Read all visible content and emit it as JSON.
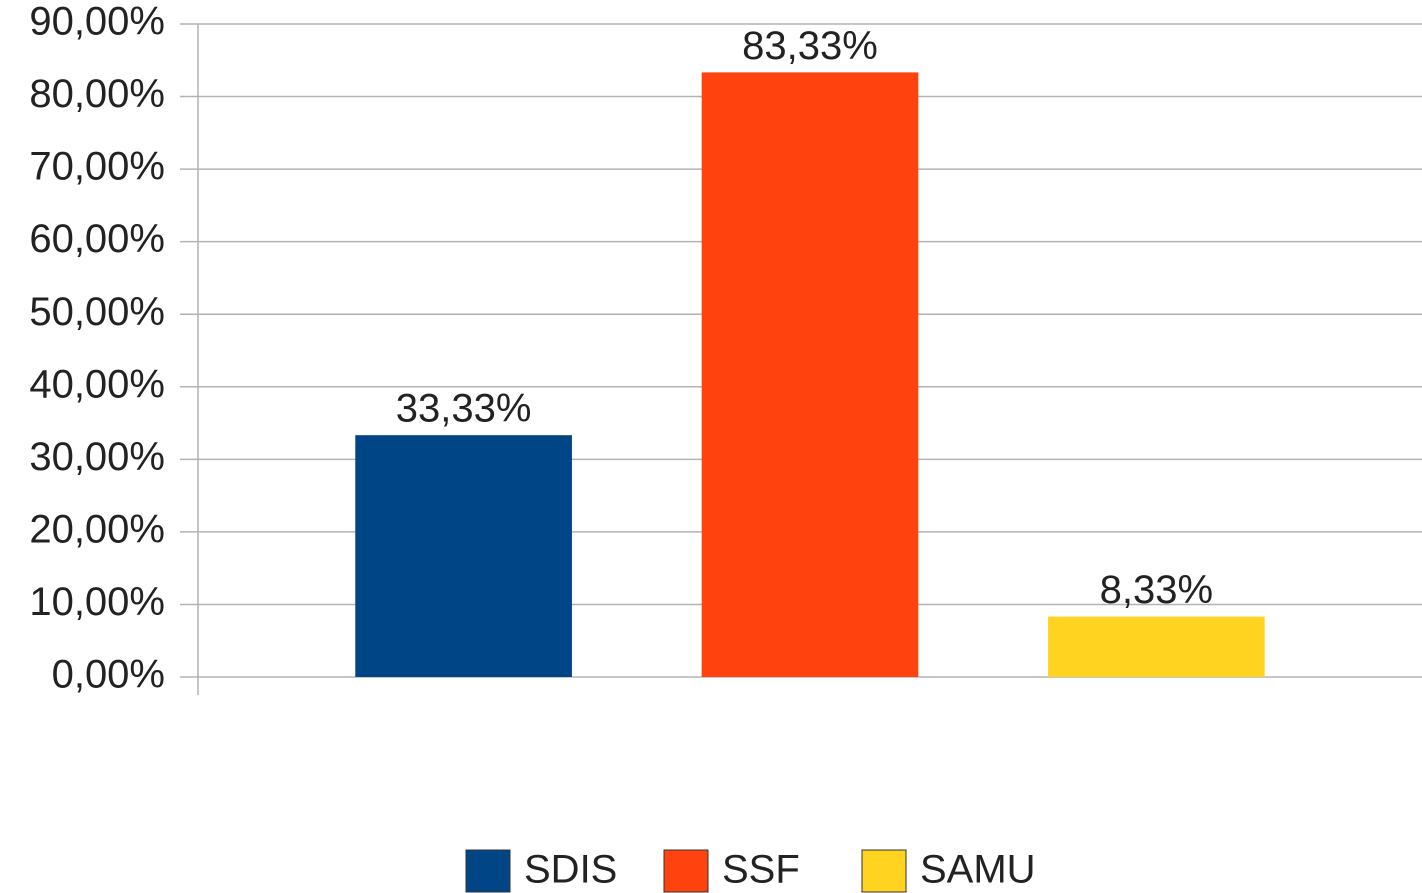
{
  "chart_data": {
    "type": "bar",
    "categories": [
      null
    ],
    "series": [
      {
        "name": "SDIS",
        "color": "#004586",
        "values": [
          33.33
        ],
        "value_labels": [
          "33,33%"
        ]
      },
      {
        "name": "SSF",
        "color": "#ff420e",
        "values": [
          83.33
        ],
        "value_labels": [
          "83,33%"
        ]
      },
      {
        "name": "SAMU",
        "color": "#ffd320",
        "values": [
          8.33
        ],
        "value_labels": [
          "8,33%"
        ]
      }
    ],
    "ylim": [
      0,
      90
    ],
    "yticks": [
      {
        "value": 0,
        "label": "0,00%"
      },
      {
        "value": 10,
        "label": "10,00%"
      },
      {
        "value": 20,
        "label": "20,00%"
      },
      {
        "value": 30,
        "label": "30,00%"
      },
      {
        "value": 40,
        "label": "40,00%"
      },
      {
        "value": 50,
        "label": "50,00%"
      },
      {
        "value": 60,
        "label": "60,00%"
      },
      {
        "value": 70,
        "label": "70,00%"
      },
      {
        "value": 80,
        "label": "80,00%"
      },
      {
        "value": 90,
        "label": "90,00%"
      }
    ],
    "grid": true,
    "legend": "bottom"
  }
}
